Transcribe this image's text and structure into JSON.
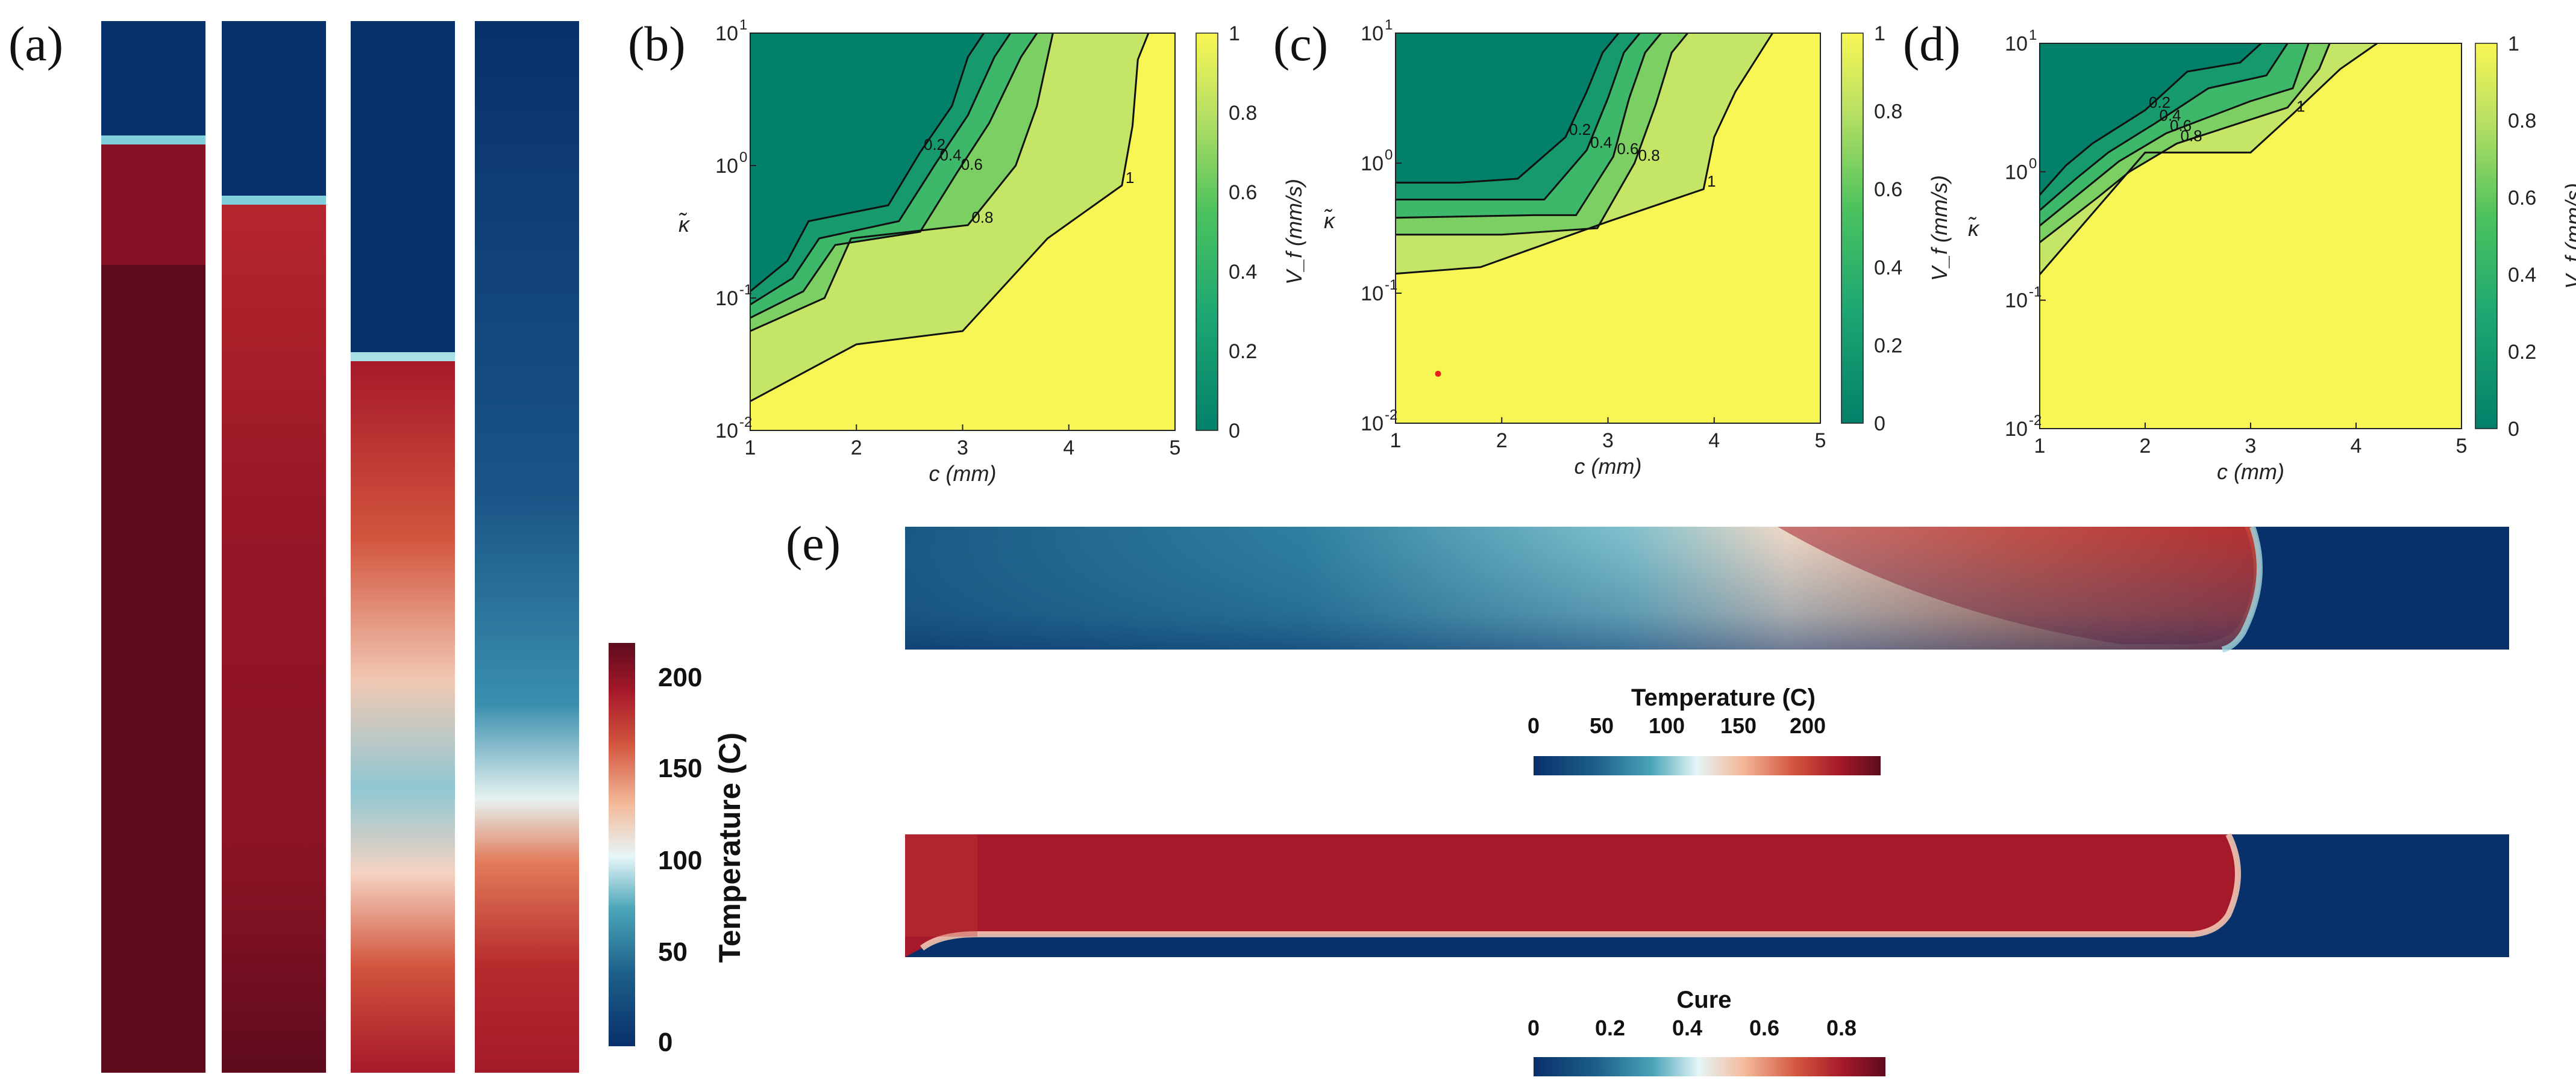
{
  "figure": {
    "panel_labels": [
      "(a)",
      "(b)",
      "(c)",
      "(d)",
      "(e)"
    ]
  },
  "colors": {
    "dark_green": "#03806a",
    "mid_green": "#2bb86a",
    "light_green": "#c8e864",
    "yellow": "#f8f654",
    "contour": "#111111",
    "thermal_cold": "#08306b",
    "thermal_hot": "#5e0b1e",
    "marker": "#e8201c"
  },
  "chart_data": [
    {
      "id": "a",
      "type": "heatmap",
      "description_kind": "temperature field snapshots (4 strips)",
      "colorbar": {
        "label": "Temperature (C)",
        "range": [
          0,
          220
        ],
        "ticks": [
          0,
          50,
          100,
          150,
          200
        ],
        "tick_labels": [
          "0",
          "50",
          "100",
          "150",
          "200"
        ]
      }
    },
    {
      "id": "b",
      "type": "contour",
      "xlabel": "c (mm)",
      "ylabel": "κ̃",
      "xlim": [
        1,
        5
      ],
      "ylim_log10": [
        -2,
        1
      ],
      "xticks": [
        "1",
        "2",
        "3",
        "4",
        "5"
      ],
      "yticks": [
        "10",
        "10",
        "10",
        "10"
      ],
      "ytick_exponents": [
        "-2",
        "-1",
        "0",
        "1"
      ],
      "colorbar": {
        "label": "V_f (mm/s)",
        "range": [
          0,
          1
        ],
        "ticks": [
          "0",
          "0.2",
          "0.4",
          "0.6",
          "0.8",
          "1"
        ]
      },
      "contour_levels": [
        "0.2",
        "0.4",
        "0.6",
        "0.8",
        "1"
      ],
      "contours": [
        {
          "level": 0.2,
          "points": [
            [
              1.0,
              -0.95
            ],
            [
              1.35,
              -0.72
            ],
            [
              1.55,
              -0.42
            ],
            [
              2.3,
              -0.3
            ],
            [
              2.6,
              0.1
            ],
            [
              2.9,
              0.45
            ],
            [
              3.05,
              0.82
            ],
            [
              3.2,
              1.0
            ]
          ]
        },
        {
          "level": 0.4,
          "points": [
            [
              1.0,
              -1.05
            ],
            [
              1.4,
              -0.85
            ],
            [
              1.65,
              -0.55
            ],
            [
              2.4,
              -0.42
            ],
            [
              2.75,
              0.02
            ],
            [
              3.05,
              0.38
            ],
            [
              3.3,
              0.82
            ],
            [
              3.45,
              1.0
            ]
          ]
        },
        {
          "level": 0.6,
          "points": [
            [
              1.0,
              -1.15
            ],
            [
              1.5,
              -0.95
            ],
            [
              1.8,
              -0.6
            ],
            [
              2.6,
              -0.5
            ],
            [
              2.95,
              -0.05
            ],
            [
              3.25,
              0.32
            ],
            [
              3.55,
              0.82
            ],
            [
              3.7,
              1.0
            ]
          ]
        },
        {
          "level": 0.8,
          "points": [
            [
              1.0,
              -1.25
            ],
            [
              1.7,
              -1.0
            ],
            [
              1.95,
              -0.55
            ],
            [
              3.05,
              -0.45
            ],
            [
              3.5,
              0.0
            ],
            [
              3.7,
              0.45
            ],
            [
              3.85,
              1.0
            ]
          ]
        },
        {
          "level": 1.0,
          "points": [
            [
              1.0,
              -1.78
            ],
            [
              2.0,
              -1.35
            ],
            [
              3.0,
              -1.25
            ],
            [
              3.8,
              -0.55
            ],
            [
              4.5,
              -0.15
            ],
            [
              4.6,
              0.3
            ],
            [
              4.65,
              0.8
            ],
            [
              4.75,
              1.0
            ]
          ]
        }
      ]
    },
    {
      "id": "c",
      "type": "contour",
      "xlabel": "c (mm)",
      "ylabel": "κ̃",
      "xlim": [
        1,
        5
      ],
      "ylim_log10": [
        -2,
        1
      ],
      "xticks": [
        "1",
        "2",
        "3",
        "4",
        "5"
      ],
      "yticks": [
        "10",
        "10",
        "10",
        "10"
      ],
      "ytick_exponents": [
        "-2",
        "-1",
        "0",
        "1"
      ],
      "colorbar": {
        "label": "V_f (mm/s)",
        "range": [
          0,
          1
        ],
        "ticks": [
          "0",
          "0.2",
          "0.4",
          "0.6",
          "0.8",
          "1"
        ]
      },
      "contour_levels": [
        "0.2",
        "0.4",
        "0.6",
        "0.8",
        "1"
      ],
      "marker": {
        "x": 1.4,
        "y_log10": -1.62
      },
      "contours": [
        {
          "level": 0.2,
          "points": [
            [
              1.0,
              -0.15
            ],
            [
              1.6,
              -0.15
            ],
            [
              2.15,
              -0.12
            ],
            [
              2.6,
              0.2
            ],
            [
              2.8,
              0.55
            ],
            [
              2.95,
              0.85
            ],
            [
              3.1,
              1.0
            ]
          ]
        },
        {
          "level": 0.4,
          "points": [
            [
              1.0,
              -0.28
            ],
            [
              1.9,
              -0.28
            ],
            [
              2.4,
              -0.28
            ],
            [
              2.8,
              0.1
            ],
            [
              3.0,
              0.5
            ],
            [
              3.15,
              0.85
            ],
            [
              3.3,
              1.0
            ]
          ]
        },
        {
          "level": 0.6,
          "points": [
            [
              1.0,
              -0.42
            ],
            [
              2.3,
              -0.4
            ],
            [
              2.7,
              -0.4
            ],
            [
              3.05,
              0.05
            ],
            [
              3.2,
              0.5
            ],
            [
              3.35,
              0.85
            ],
            [
              3.5,
              1.0
            ]
          ]
        },
        {
          "level": 0.8,
          "points": [
            [
              1.0,
              -0.55
            ],
            [
              2.0,
              -0.55
            ],
            [
              2.9,
              -0.5
            ],
            [
              3.25,
              0.0
            ],
            [
              3.45,
              0.45
            ],
            [
              3.6,
              0.85
            ],
            [
              3.75,
              1.0
            ]
          ]
        },
        {
          "level": 1.0,
          "points": [
            [
              1.0,
              -0.85
            ],
            [
              1.8,
              -0.8
            ],
            [
              3.0,
              -0.45
            ],
            [
              3.9,
              -0.2
            ],
            [
              4.0,
              0.2
            ],
            [
              4.2,
              0.55
            ],
            [
              4.55,
              1.0
            ]
          ]
        }
      ]
    },
    {
      "id": "d",
      "type": "contour",
      "xlabel": "c (mm)",
      "ylabel": "κ̃",
      "xlim": [
        1,
        5
      ],
      "ylim_log10": [
        -2,
        1
      ],
      "xticks": [
        "1",
        "2",
        "3",
        "4",
        "5"
      ],
      "yticks": [
        "10",
        "10",
        "10",
        "10"
      ],
      "ytick_exponents": [
        "-2",
        "-1",
        "0",
        "1"
      ],
      "colorbar": {
        "label": "V_f (mm/s)",
        "range": [
          0,
          1
        ],
        "ticks": [
          "0",
          "0.2",
          "0.4",
          "0.6",
          "0.8",
          "1"
        ]
      },
      "contour_levels": [
        "0.2",
        "0.4",
        "0.6",
        "0.8",
        "1"
      ],
      "contours": [
        {
          "level": 0.2,
          "points": [
            [
              1.0,
              -0.18
            ],
            [
              1.25,
              0.05
            ],
            [
              1.5,
              0.22
            ],
            [
              2.0,
              0.48
            ],
            [
              2.4,
              0.78
            ],
            [
              2.9,
              0.85
            ],
            [
              3.1,
              1.0
            ]
          ]
        },
        {
          "level": 0.4,
          "points": [
            [
              1.0,
              -0.3
            ],
            [
              1.35,
              -0.05
            ],
            [
              1.65,
              0.15
            ],
            [
              2.1,
              0.38
            ],
            [
              2.6,
              0.65
            ],
            [
              3.15,
              0.75
            ],
            [
              3.35,
              1.0
            ]
          ]
        },
        {
          "level": 0.6,
          "points": [
            [
              1.0,
              -0.42
            ],
            [
              1.45,
              -0.12
            ],
            [
              1.75,
              0.08
            ],
            [
              2.2,
              0.3
            ],
            [
              3.0,
              0.55
            ],
            [
              3.4,
              0.65
            ],
            [
              3.55,
              1.0
            ]
          ]
        },
        {
          "level": 0.8,
          "points": [
            [
              1.0,
              -0.55
            ],
            [
              1.55,
              -0.2
            ],
            [
              1.85,
              0.0
            ],
            [
              2.3,
              0.22
            ],
            [
              3.35,
              0.5
            ],
            [
              3.65,
              0.8
            ],
            [
              3.75,
              1.0
            ]
          ]
        },
        {
          "level": 1.0,
          "points": [
            [
              1.0,
              -0.8
            ],
            [
              2.0,
              0.15
            ],
            [
              3.0,
              0.15
            ],
            [
              3.4,
              0.45
            ],
            [
              3.85,
              0.8
            ],
            [
              4.2,
              1.0
            ]
          ]
        }
      ]
    },
    {
      "id": "e_temperature",
      "type": "heatmap",
      "colorbar": {
        "label": "Temperature (C)",
        "range": [
          0,
          220
        ],
        "ticks": [
          0,
          50,
          100,
          150,
          200
        ],
        "tick_labels": [
          "0",
          "50",
          "100",
          "150",
          "200"
        ]
      }
    },
    {
      "id": "e_cure",
      "type": "heatmap",
      "colorbar": {
        "label": "Cure",
        "range": [
          0,
          0.9
        ],
        "ticks": [
          0,
          0.2,
          0.4,
          0.6,
          0.8
        ],
        "tick_labels": [
          "0",
          "0.2",
          "0.4",
          "0.6",
          "0.8"
        ]
      }
    }
  ]
}
